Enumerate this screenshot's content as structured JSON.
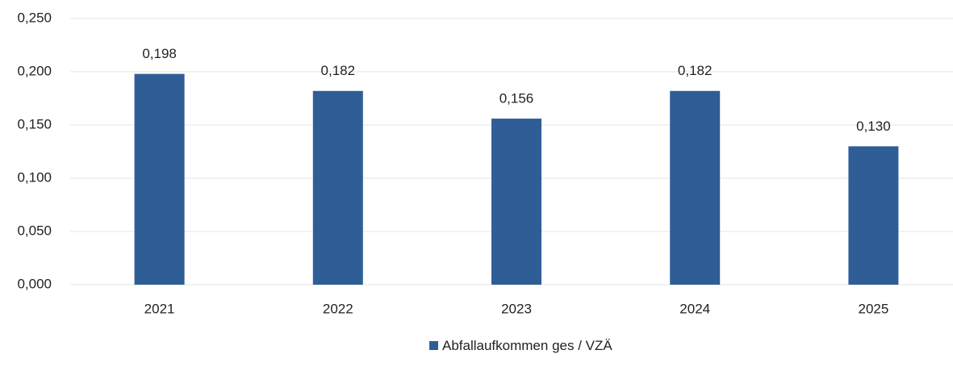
{
  "chart_data": {
    "type": "bar",
    "categories": [
      "2021",
      "2022",
      "2023",
      "2024",
      "2025"
    ],
    "series": [
      {
        "name": "Abfallaufkommen ges / VZÄ",
        "color": "#2f5e97",
        "values": [
          0.198,
          0.182,
          0.156,
          0.182,
          0.13
        ],
        "value_labels": [
          "0,198",
          "0,182",
          "0,156",
          "0,182",
          "0,130"
        ]
      }
    ],
    "ylim": [
      0,
      0.25
    ],
    "yticks": [
      {
        "value": 0,
        "label": "0,000"
      },
      {
        "value": 0.05,
        "label": "0,050"
      },
      {
        "value": 0.1,
        "label": "0,100"
      },
      {
        "value": 0.15,
        "label": "0,150"
      },
      {
        "value": 0.2,
        "label": "0,200"
      },
      {
        "value": 0.25,
        "label": "0,250"
      }
    ],
    "grid": true,
    "legend": "bottom"
  }
}
